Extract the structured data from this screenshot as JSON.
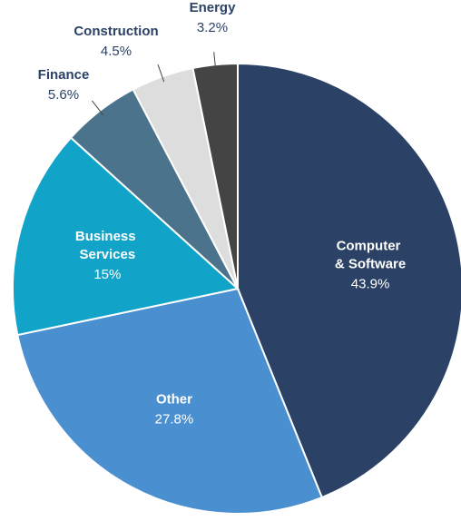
{
  "chart_data": {
    "type": "pie",
    "categories": [
      "Computer & Software",
      "Other",
      "Business Services",
      "Finance",
      "Construction",
      "Energy"
    ],
    "values": [
      43.9,
      27.8,
      15,
      5.6,
      4.5,
      3.2
    ],
    "value_labels": [
      "43.9%",
      "27.8%",
      "15%",
      "5.6%",
      "4.5%",
      "3.2%"
    ],
    "colors": [
      "#2b4266",
      "#4a8fd0",
      "#12a4c8",
      "#4b738c",
      "#dddddd",
      "#444444"
    ]
  }
}
